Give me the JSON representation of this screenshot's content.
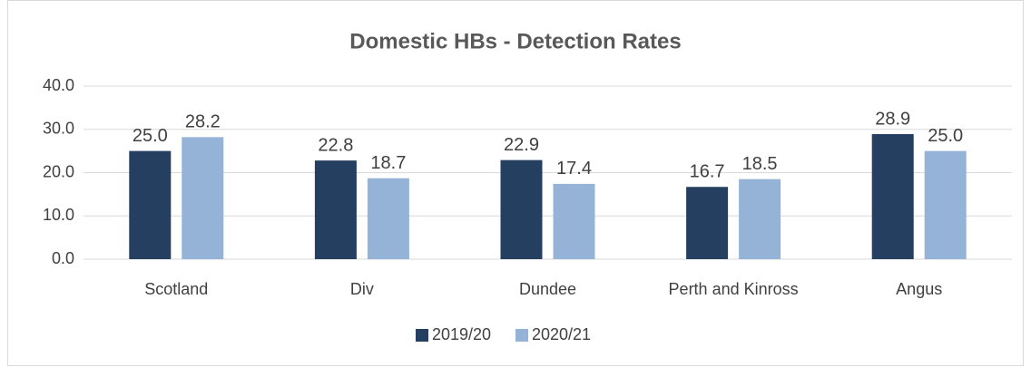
{
  "chart_data": {
    "type": "bar",
    "title": "Domestic HBs - Detection Rates",
    "categories": [
      "Scotland",
      "Div",
      "Dundee",
      "Perth and Kinross",
      "Angus"
    ],
    "series": [
      {
        "name": "2019/20",
        "color": "#243f60",
        "values": [
          25.0,
          22.8,
          22.9,
          16.7,
          28.9
        ],
        "value_labels": [
          "25.0",
          "22.8",
          "22.9",
          "16.7",
          "28.9"
        ]
      },
      {
        "name": "2020/21",
        "color": "#95b3d7",
        "values": [
          28.2,
          18.7,
          17.4,
          18.5,
          25.0
        ],
        "value_labels": [
          "28.2",
          "18.7",
          "17.4",
          "18.5",
          "25.0"
        ]
      }
    ],
    "ylim": [
      0,
      40
    ],
    "yticks": [
      {
        "value": 0,
        "label": "0.0"
      },
      {
        "value": 10,
        "label": "10.0"
      },
      {
        "value": 20,
        "label": "20.0"
      },
      {
        "value": 30,
        "label": "30.0"
      },
      {
        "value": 40,
        "label": "40.0"
      }
    ],
    "grid": true,
    "legend": "bottom"
  }
}
